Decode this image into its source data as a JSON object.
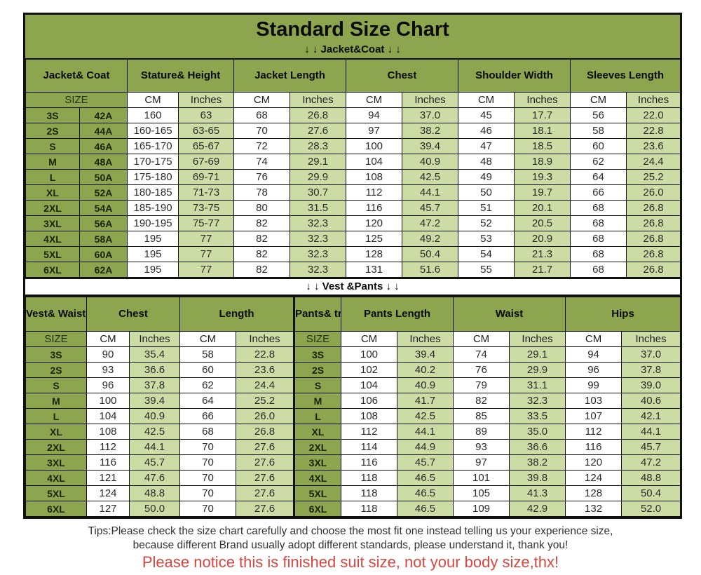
{
  "title": "Standard Size Chart",
  "jacket": {
    "banner": "↓ ↓  Jacket&Coat ↓ ↓",
    "groups": [
      "Jacket&\nCoat",
      "Stature&\nHeight",
      "Jacket\nLength",
      "Chest",
      "Shoulder\nWidth",
      "Sleeves\nLength"
    ],
    "size_label": "SIZE",
    "cm_label": "CM",
    "inches_label": "Inches",
    "rows": [
      {
        "size": "3S",
        "code": "42A",
        "values": [
          "160",
          "63",
          "68",
          "26.8",
          "94",
          "37.0",
          "45",
          "17.7",
          "56",
          "22.0"
        ]
      },
      {
        "size": "2S",
        "code": "44A",
        "values": [
          "160-165",
          "63-65",
          "70",
          "27.6",
          "97",
          "38.2",
          "46",
          "18.1",
          "58",
          "22.8"
        ]
      },
      {
        "size": "S",
        "code": "46A",
        "values": [
          "165-170",
          "65-67",
          "72",
          "28.3",
          "100",
          "39.4",
          "47",
          "18.5",
          "60",
          "23.6"
        ]
      },
      {
        "size": "M",
        "code": "48A",
        "values": [
          "170-175",
          "67-69",
          "74",
          "29.1",
          "104",
          "40.9",
          "48",
          "18.9",
          "62",
          "24.4"
        ]
      },
      {
        "size": "L",
        "code": "50A",
        "values": [
          "175-180",
          "69-71",
          "76",
          "29.9",
          "108",
          "42.5",
          "49",
          "19.3",
          "64",
          "25.2"
        ]
      },
      {
        "size": "XL",
        "code": "52A",
        "values": [
          "180-185",
          "71-73",
          "78",
          "30.7",
          "112",
          "44.1",
          "50",
          "19.7",
          "66",
          "26.0"
        ]
      },
      {
        "size": "2XL",
        "code": "54A",
        "values": [
          "185-190",
          "73-75",
          "80",
          "31.5",
          "116",
          "45.7",
          "51",
          "20.1",
          "68",
          "26.8"
        ]
      },
      {
        "size": "3XL",
        "code": "56A",
        "values": [
          "190-195",
          "75-77",
          "82",
          "32.3",
          "120",
          "47.2",
          "52",
          "20.5",
          "68",
          "26.8"
        ]
      },
      {
        "size": "4XL",
        "code": "58A",
        "values": [
          "195",
          "77",
          "82",
          "32.3",
          "125",
          "49.2",
          "53",
          "20.9",
          "68",
          "26.8"
        ]
      },
      {
        "size": "5XL",
        "code": "60A",
        "values": [
          "195",
          "77",
          "82",
          "32.3",
          "128",
          "50.4",
          "54",
          "21.3",
          "68",
          "26.8"
        ]
      },
      {
        "size": "6XL",
        "code": "62A",
        "values": [
          "195",
          "77",
          "82",
          "32.3",
          "131",
          "51.6",
          "55",
          "21.7",
          "68",
          "26.8"
        ]
      }
    ]
  },
  "bottom": {
    "banner": "↓ ↓  Vest &Pants ↓ ↓",
    "vest_header": "Vest&\nWaistcoat",
    "chest_label": "Chest",
    "length_label": "Length",
    "pants_header": "Pants&\ntrousers",
    "pants_length_label": "Pants\nLength",
    "waist_label": "Waist",
    "hips_label": "Hips",
    "size_label": "SIZE",
    "cm_label": "CM",
    "inches_label": "Inches",
    "rows": [
      {
        "vest_size": "3S",
        "vest": [
          "90",
          "35.4",
          "58",
          "22.8"
        ],
        "pants_size": "3S",
        "pants": [
          "100",
          "39.4",
          "74",
          "29.1",
          "94",
          "37.0"
        ]
      },
      {
        "vest_size": "2S",
        "vest": [
          "93",
          "36.6",
          "60",
          "23.6"
        ],
        "pants_size": "2S",
        "pants": [
          "102",
          "40.2",
          "76",
          "29.9",
          "96",
          "37.8"
        ]
      },
      {
        "vest_size": "S",
        "vest": [
          "96",
          "37.8",
          "62",
          "24.4"
        ],
        "pants_size": "S",
        "pants": [
          "104",
          "40.9",
          "79",
          "31.1",
          "99",
          "39.0"
        ]
      },
      {
        "vest_size": "M",
        "vest": [
          "100",
          "39.4",
          "64",
          "25.2"
        ],
        "pants_size": "M",
        "pants": [
          "106",
          "41.7",
          "82",
          "32.3",
          "103",
          "40.6"
        ]
      },
      {
        "vest_size": "L",
        "vest": [
          "104",
          "40.9",
          "66",
          "26.0"
        ],
        "pants_size": "L",
        "pants": [
          "108",
          "42.5",
          "85",
          "33.5",
          "107",
          "42.1"
        ]
      },
      {
        "vest_size": "XL",
        "vest": [
          "108",
          "42.5",
          "68",
          "26.8"
        ],
        "pants_size": "XL",
        "pants": [
          "112",
          "44.1",
          "89",
          "35.0",
          "112",
          "44.1"
        ]
      },
      {
        "vest_size": "2XL",
        "vest": [
          "112",
          "44.1",
          "70",
          "27.6"
        ],
        "pants_size": "2XL",
        "pants": [
          "114",
          "44.9",
          "93",
          "36.6",
          "116",
          "45.7"
        ]
      },
      {
        "vest_size": "3XL",
        "vest": [
          "116",
          "45.7",
          "70",
          "27.6"
        ],
        "pants_size": "3XL",
        "pants": [
          "116",
          "45.7",
          "97",
          "38.2",
          "120",
          "47.2"
        ]
      },
      {
        "vest_size": "4XL",
        "vest": [
          "121",
          "47.6",
          "70",
          "27.6"
        ],
        "pants_size": "4XL",
        "pants": [
          "118",
          "46.5",
          "101",
          "39.8",
          "124",
          "48.8"
        ]
      },
      {
        "vest_size": "5XL",
        "vest": [
          "124",
          "48.8",
          "70",
          "27.6"
        ],
        "pants_size": "5XL",
        "pants": [
          "118",
          "46.5",
          "105",
          "41.3",
          "128",
          "50.4"
        ]
      },
      {
        "vest_size": "6XL",
        "vest": [
          "127",
          "50.0",
          "70",
          "27.6"
        ],
        "pants_size": "6XL",
        "pants": [
          "118",
          "46.5",
          "109",
          "42.9",
          "132",
          "52.0"
        ]
      }
    ]
  },
  "tips": {
    "line1": "Tips:Please check the size chart carefully and choose the most fit one instead telling us your experience size,",
    "line2": "because different Brand usually adopt different standards, please understand it, thank you!",
    "notice": "Please notice this is finished suit size, not your body size,thx!"
  },
  "colors": {
    "header_olive_green": "#8CA54E",
    "cell_light_green": "#CDDCA4",
    "cell_white": "#FFFFFF",
    "border_black": "#111111",
    "notice_red": "#D8453E"
  }
}
